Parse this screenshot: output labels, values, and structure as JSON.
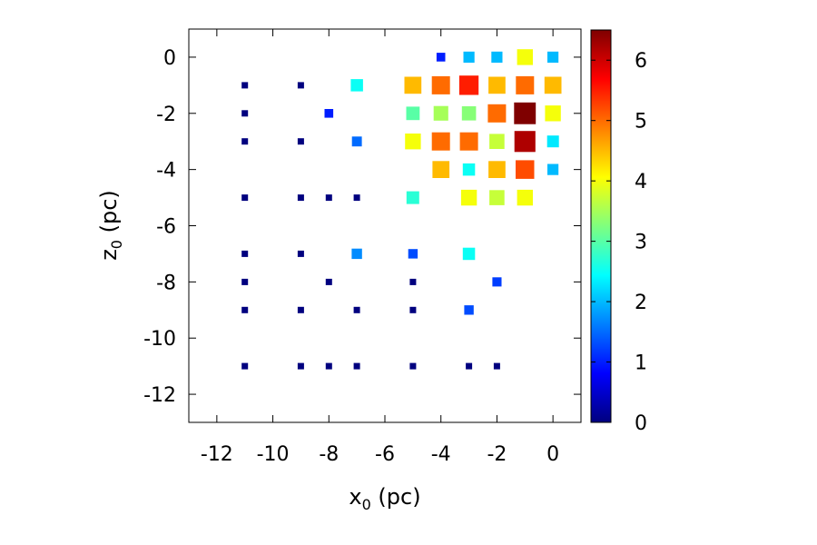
{
  "chart_data": {
    "type": "scatter",
    "xlabel": {
      "main": "x",
      "sub": "0",
      "unit": " (pc)"
    },
    "ylabel": {
      "main": "z",
      "sub": "0",
      "unit": " (pc)"
    },
    "xlim": [
      -13,
      1
    ],
    "ylim": [
      -13,
      1
    ],
    "xticks": [
      -12,
      -10,
      -8,
      -6,
      -4,
      -2,
      0
    ],
    "yticks": [
      0,
      -2,
      -4,
      -6,
      -8,
      -10,
      -12
    ],
    "colorbar": {
      "range": [
        0,
        6.5
      ],
      "ticks": [
        0,
        1,
        2,
        3,
        4,
        5,
        6
      ],
      "colormap": "jet",
      "stops": [
        "#00007f",
        "#0000ff",
        "#007fff",
        "#00ffff",
        "#7fff7f",
        "#ffff00",
        "#ff7f00",
        "#ff0000",
        "#7f0000"
      ]
    },
    "grid": false,
    "points": [
      {
        "x": -4,
        "z": 0,
        "v": 1.0
      },
      {
        "x": -3,
        "z": 0,
        "v": 2.0
      },
      {
        "x": -2,
        "z": 0,
        "v": 2.0
      },
      {
        "x": -1,
        "z": 0,
        "v": 4.0
      },
      {
        "x": 0,
        "z": 0,
        "v": 2.0
      },
      {
        "x": -11,
        "z": -1,
        "v": 0.0
      },
      {
        "x": -9,
        "z": -1,
        "v": 0.0
      },
      {
        "x": -7,
        "z": -1,
        "v": 2.5
      },
      {
        "x": -5,
        "z": -1,
        "v": 4.5
      },
      {
        "x": -4,
        "z": -1,
        "v": 5.0
      },
      {
        "x": -3,
        "z": -1,
        "v": 5.5
      },
      {
        "x": -2,
        "z": -1,
        "v": 4.5
      },
      {
        "x": -1,
        "z": -1,
        "v": 5.0
      },
      {
        "x": 0,
        "z": -1,
        "v": 4.5
      },
      {
        "x": -11,
        "z": -2,
        "v": 0.0
      },
      {
        "x": -8,
        "z": -2,
        "v": 1.0
      },
      {
        "x": -5,
        "z": -2,
        "v": 3.0
      },
      {
        "x": -4,
        "z": -2,
        "v": 3.5
      },
      {
        "x": -3,
        "z": -2,
        "v": 3.3
      },
      {
        "x": -2,
        "z": -2,
        "v": 5.0
      },
      {
        "x": -1,
        "z": -2,
        "v": 6.5
      },
      {
        "x": 0,
        "z": -2,
        "v": 4.0
      },
      {
        "x": -11,
        "z": -3,
        "v": 0.0
      },
      {
        "x": -9,
        "z": -3,
        "v": 0.0
      },
      {
        "x": -7,
        "z": -3,
        "v": 1.5
      },
      {
        "x": -5,
        "z": -3,
        "v": 4.0
      },
      {
        "x": -4,
        "z": -3,
        "v": 5.0
      },
      {
        "x": -3,
        "z": -3,
        "v": 5.0
      },
      {
        "x": -2,
        "z": -3,
        "v": 3.7
      },
      {
        "x": -1,
        "z": -3,
        "v": 6.2
      },
      {
        "x": 0,
        "z": -3,
        "v": 2.3
      },
      {
        "x": -4,
        "z": -4,
        "v": 4.5
      },
      {
        "x": -3,
        "z": -4,
        "v": 2.5
      },
      {
        "x": -2,
        "z": -4,
        "v": 4.5
      },
      {
        "x": -1,
        "z": -4,
        "v": 5.2
      },
      {
        "x": 0,
        "z": -4,
        "v": 2.0
      },
      {
        "x": -11,
        "z": -5,
        "v": 0.0
      },
      {
        "x": -9,
        "z": -5,
        "v": 0.0
      },
      {
        "x": -8,
        "z": -5,
        "v": 0.0
      },
      {
        "x": -7,
        "z": -5,
        "v": 0.0
      },
      {
        "x": -5,
        "z": -5,
        "v": 2.7
      },
      {
        "x": -3,
        "z": -5,
        "v": 4.0
      },
      {
        "x": -2,
        "z": -5,
        "v": 3.7
      },
      {
        "x": -1,
        "z": -5,
        "v": 4.0
      },
      {
        "x": -11,
        "z": -7,
        "v": 0.0
      },
      {
        "x": -9,
        "z": -7,
        "v": 0.0
      },
      {
        "x": -7,
        "z": -7,
        "v": 1.7
      },
      {
        "x": -5,
        "z": -7,
        "v": 1.3
      },
      {
        "x": -3,
        "z": -7,
        "v": 2.5
      },
      {
        "x": -11,
        "z": -8,
        "v": 0.0
      },
      {
        "x": -8,
        "z": -8,
        "v": 0.0
      },
      {
        "x": -5,
        "z": -8,
        "v": 0.0
      },
      {
        "x": -2,
        "z": -8,
        "v": 1.2
      },
      {
        "x": -11,
        "z": -9,
        "v": 0.0
      },
      {
        "x": -9,
        "z": -9,
        "v": 0.0
      },
      {
        "x": -7,
        "z": -9,
        "v": 0.0
      },
      {
        "x": -5,
        "z": -9,
        "v": 0.0
      },
      {
        "x": -3,
        "z": -9,
        "v": 1.3
      },
      {
        "x": -11,
        "z": -11,
        "v": 0.0
      },
      {
        "x": -9,
        "z": -11,
        "v": 0.0
      },
      {
        "x": -8,
        "z": -11,
        "v": 0.0
      },
      {
        "x": -7,
        "z": -11,
        "v": 0.0
      },
      {
        "x": -5,
        "z": -11,
        "v": 0.0
      },
      {
        "x": -3,
        "z": -11,
        "v": 0.0
      },
      {
        "x": -2,
        "z": -11,
        "v": 0.0
      }
    ]
  }
}
